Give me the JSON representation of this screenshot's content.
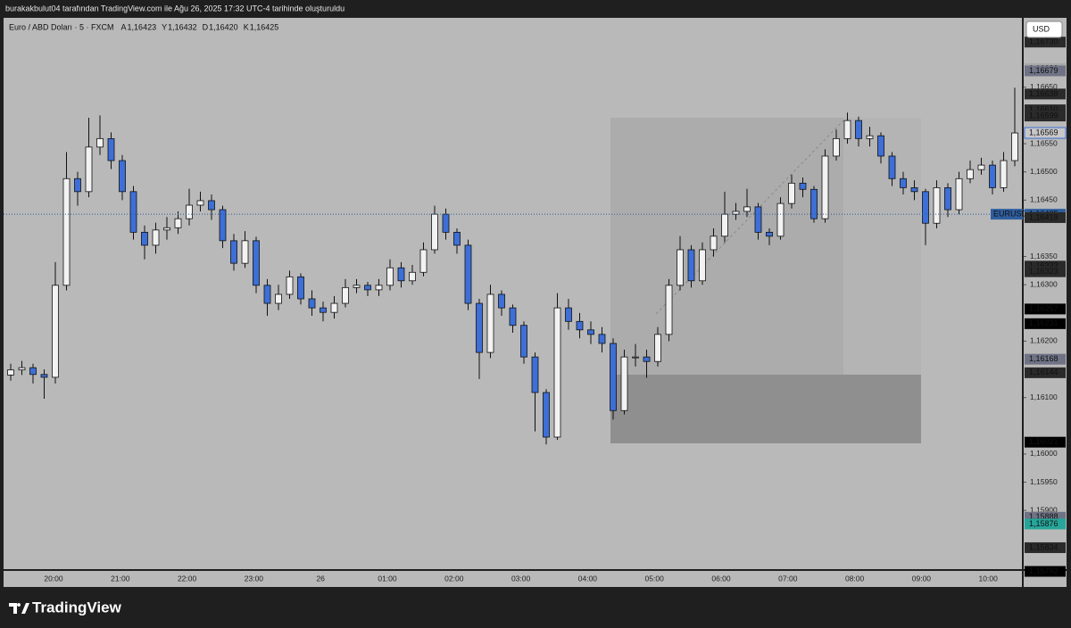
{
  "header": {
    "caption": "burakakbulut04 tarafından TradingView.com ile Ağu 26, 2025 17:32 UTC-4 tarihinde oluşturuldu"
  },
  "legend": {
    "symbol": "Euro / ABD Doları · 5 · FXCM",
    "ohlc": [
      {
        "key": "A",
        "value": "1,16423"
      },
      {
        "key": "Y",
        "value": "1,16432"
      },
      {
        "key": "D",
        "value": "1,16420"
      },
      {
        "key": "K",
        "value": "1,16425"
      }
    ]
  },
  "currency_button": "USD",
  "footer": {
    "brand": "TradingView"
  },
  "chart_data": {
    "type": "candlestick",
    "up_color": "#f2f2f2",
    "down_color": "#3d6fd6",
    "wick_color": "#111111",
    "ylim": [
      1.15796,
      1.16773
    ],
    "yticks": [
      {
        "value": 1.159,
        "label": "1,15900"
      },
      {
        "value": 1.1595,
        "label": "1,15950"
      },
      {
        "value": 1.16,
        "label": "1,16000"
      },
      {
        "value": 1.161,
        "label": "1,16100"
      },
      {
        "value": 1.162,
        "label": "1,16200"
      },
      {
        "value": 1.163,
        "label": "1,16300"
      },
      {
        "value": 1.1635,
        "label": "1,16350"
      },
      {
        "value": 1.1645,
        "label": "1,16450"
      },
      {
        "value": 1.165,
        "label": "1,16500"
      },
      {
        "value": 1.1655,
        "label": "1,16550"
      },
      {
        "value": 1.1665,
        "label": "1,16650"
      }
    ],
    "xtick_labels": [
      "20:00",
      "21:00",
      "22:00",
      "23:00",
      "26",
      "01:00",
      "02:00",
      "03:00",
      "04:00",
      "05:00",
      "06:00",
      "07:00",
      "08:00",
      "09:00",
      "10:00"
    ],
    "open": [
      1.1614,
      1.16149,
      1.16153,
      1.16141,
      1.16136,
      1.16299,
      1.16488,
      1.16465,
      1.16544,
      1.16559,
      1.1652,
      1.16465,
      1.16393,
      1.1637,
      1.16397,
      1.16401,
      1.16417,
      1.16441,
      1.16449,
      1.16433,
      1.16378,
      1.16338,
      1.16378,
      1.16299,
      1.16267,
      1.16283,
      1.16314,
      1.16275,
      1.16259,
      1.16251,
      1.16267,
      1.16295,
      1.16299,
      1.16291,
      1.16299,
      1.1633,
      1.16307,
      1.16322,
      1.16362,
      1.16425,
      1.16393,
      1.1637,
      1.16267,
      1.1618,
      1.16283,
      1.16259,
      1.16228,
      1.16172,
      1.16109,
      1.1603,
      1.16259,
      1.16235,
      1.1622,
      1.16212,
      1.16196,
      1.16077,
      1.16172,
      1.16172,
      1.16164,
      1.16212,
      1.16299,
      1.16362,
      1.16307,
      1.16362,
      1.16386,
      1.16425,
      1.1643,
      1.16438,
      1.16393,
      1.16386,
      1.16444,
      1.1648,
      1.16469,
      1.16417,
      1.16528,
      1.16559,
      1.16591,
      1.16559,
      1.16564,
      1.16528,
      1.16488,
      1.16472,
      1.16465,
      1.16409,
      1.16472,
      1.16433,
      1.16488,
      1.16504,
      1.16512,
      1.16472,
      1.1652
    ],
    "high": [
      1.1616,
      1.16165,
      1.1616,
      1.1615,
      1.1634,
      1.16535,
      1.165,
      1.16596,
      1.166,
      1.1657,
      1.1653,
      1.16475,
      1.16405,
      1.1641,
      1.1642,
      1.1643,
      1.1647,
      1.16465,
      1.1646,
      1.1644,
      1.1639,
      1.16395,
      1.16385,
      1.1631,
      1.163,
      1.16325,
      1.1632,
      1.1629,
      1.1627,
      1.1628,
      1.1631,
      1.1631,
      1.16305,
      1.1631,
      1.16345,
      1.1634,
      1.16335,
      1.16375,
      1.1644,
      1.16435,
      1.164,
      1.1638,
      1.16275,
      1.163,
      1.1629,
      1.16265,
      1.16235,
      1.1618,
      1.16115,
      1.16285,
      1.16275,
      1.1625,
      1.16235,
      1.16225,
      1.16205,
      1.16185,
      1.16195,
      1.16185,
      1.16225,
      1.1631,
      1.16386,
      1.1637,
      1.16375,
      1.164,
      1.16465,
      1.16445,
      1.1647,
      1.16445,
      1.164,
      1.16455,
      1.16495,
      1.1649,
      1.16475,
      1.1654,
      1.16575,
      1.16605,
      1.16598,
      1.1658,
      1.1657,
      1.16535,
      1.165,
      1.16485,
      1.1647,
      1.16485,
      1.1648,
      1.165,
      1.1652,
      1.16525,
      1.1652,
      1.16535,
      1.16649
    ],
    "low": [
      1.1613,
      1.1614,
      1.16125,
      1.16098,
      1.16125,
      1.1629,
      1.1644,
      1.16455,
      1.1653,
      1.16505,
      1.1645,
      1.1638,
      1.16345,
      1.16355,
      1.1638,
      1.1639,
      1.16405,
      1.1643,
      1.16415,
      1.16365,
      1.16325,
      1.1633,
      1.16285,
      1.16245,
      1.16255,
      1.16275,
      1.16265,
      1.16245,
      1.16235,
      1.1624,
      1.1626,
      1.16285,
      1.1628,
      1.1628,
      1.1629,
      1.16295,
      1.163,
      1.16315,
      1.16355,
      1.1638,
      1.16355,
      1.16255,
      1.16133,
      1.1617,
      1.16245,
      1.16215,
      1.1616,
      1.1604,
      1.16017,
      1.16025,
      1.1622,
      1.16205,
      1.16195,
      1.1618,
      1.16061,
      1.1607,
      1.16155,
      1.16135,
      1.16155,
      1.162,
      1.1629,
      1.16295,
      1.163,
      1.1635,
      1.16375,
      1.16415,
      1.1642,
      1.1638,
      1.1637,
      1.1638,
      1.16435,
      1.16455,
      1.1641,
      1.1641,
      1.1652,
      1.1655,
      1.16545,
      1.16545,
      1.16515,
      1.16475,
      1.1646,
      1.1645,
      1.1637,
      1.164,
      1.1642,
      1.16425,
      1.1648,
      1.16495,
      1.1646,
      1.16465,
      1.1651
    ],
    "close": [
      1.16149,
      1.16153,
      1.16141,
      1.16136,
      1.16299,
      1.16488,
      1.16465,
      1.16544,
      1.16559,
      1.1652,
      1.16465,
      1.16393,
      1.1637,
      1.16397,
      1.16401,
      1.16417,
      1.16441,
      1.16449,
      1.16433,
      1.16378,
      1.16338,
      1.16378,
      1.16299,
      1.16267,
      1.16283,
      1.16314,
      1.16275,
      1.16259,
      1.16251,
      1.16267,
      1.16295,
      1.16299,
      1.16291,
      1.16299,
      1.1633,
      1.16307,
      1.16322,
      1.16362,
      1.16425,
      1.16393,
      1.1637,
      1.16267,
      1.1618,
      1.16283,
      1.16259,
      1.16228,
      1.16172,
      1.16109,
      1.1603,
      1.16259,
      1.16235,
      1.1622,
      1.16212,
      1.16196,
      1.16077,
      1.16172,
      1.16172,
      1.16164,
      1.16212,
      1.16299,
      1.16362,
      1.16307,
      1.16362,
      1.16386,
      1.16425,
      1.1643,
      1.16438,
      1.16393,
      1.16386,
      1.16444,
      1.1648,
      1.16469,
      1.16417,
      1.16528,
      1.16559,
      1.16591,
      1.16559,
      1.16564,
      1.16528,
      1.16488,
      1.16472,
      1.16465,
      1.16409,
      1.16472,
      1.16433,
      1.16488,
      1.16504,
      1.16512,
      1.16472,
      1.1652,
      1.16569
    ],
    "price_labels": [
      {
        "value": 1.1673,
        "label": "1,16730",
        "bg": "#2a2a2a",
        "fg": "#ffffff"
      },
      {
        "value": 1.16683,
        "label": "1,16683",
        "bg": "#a9a9a9",
        "fg": "#111111"
      },
      {
        "value": 1.16679,
        "label": "1,16679",
        "bg": "#6f7385",
        "fg": "#ffffff"
      },
      {
        "value": 1.16638,
        "label": "1,16638",
        "bg": "#2a2a2a",
        "fg": "#ffffff"
      },
      {
        "value": 1.1661,
        "label": "1,16610",
        "bg": "#2a2a2a",
        "fg": "#ffffff"
      },
      {
        "value": 1.16599,
        "label": "1,16599",
        "bg": "#2a2a2a",
        "fg": "#ffffff"
      },
      {
        "value": 1.16569,
        "label": "1,16569",
        "bg": "#c8c8c8",
        "fg": "#3d6fd6",
        "outline": "#3d6fd6"
      },
      {
        "value": 1.16425,
        "label": "1,16425",
        "bg": "#2f5e9e",
        "fg": "#ffffff",
        "tag": "EURUSD",
        "line": "#2f5e9e"
      },
      {
        "value": 1.16419,
        "label": "1,16419",
        "bg": "#2a2a2a",
        "fg": "#ffffff"
      },
      {
        "value": 1.16333,
        "label": "1,16333",
        "bg": "#2a2a2a",
        "fg": "#ffffff"
      },
      {
        "value": 1.16323,
        "label": "1,16323",
        "bg": "#2a2a2a",
        "fg": "#ffffff"
      },
      {
        "value": 1.16257,
        "label": "1,16257",
        "bg": "#000000",
        "fg": "#ffffff"
      },
      {
        "value": 1.16231,
        "label": "1,16231",
        "bg": "#000000",
        "fg": "#ffffff"
      },
      {
        "value": 1.16168,
        "label": "1,16168",
        "bg": "#6f7385",
        "fg": "#ffffff"
      },
      {
        "value": 1.16144,
        "label": "1,16144",
        "bg": "#2a2a2a",
        "fg": "#ffffff"
      },
      {
        "value": 1.16021,
        "label": "1,16021",
        "bg": "#000000",
        "fg": "#ffffff"
      },
      {
        "value": 1.15888,
        "label": "1,15888",
        "bg": "#6f7385",
        "fg": "#ffffff"
      },
      {
        "value": 1.15876,
        "label": "1,15876",
        "bg": "#26a69a",
        "fg": "#ffffff"
      },
      {
        "value": 1.15834,
        "label": "1,15834",
        "bg": "#2a2a2a",
        "fg": "#ffffff"
      },
      {
        "value": 1.15792,
        "label": "1,15792",
        "bg": "#000000",
        "fg": "#ffffff"
      }
    ]
  }
}
